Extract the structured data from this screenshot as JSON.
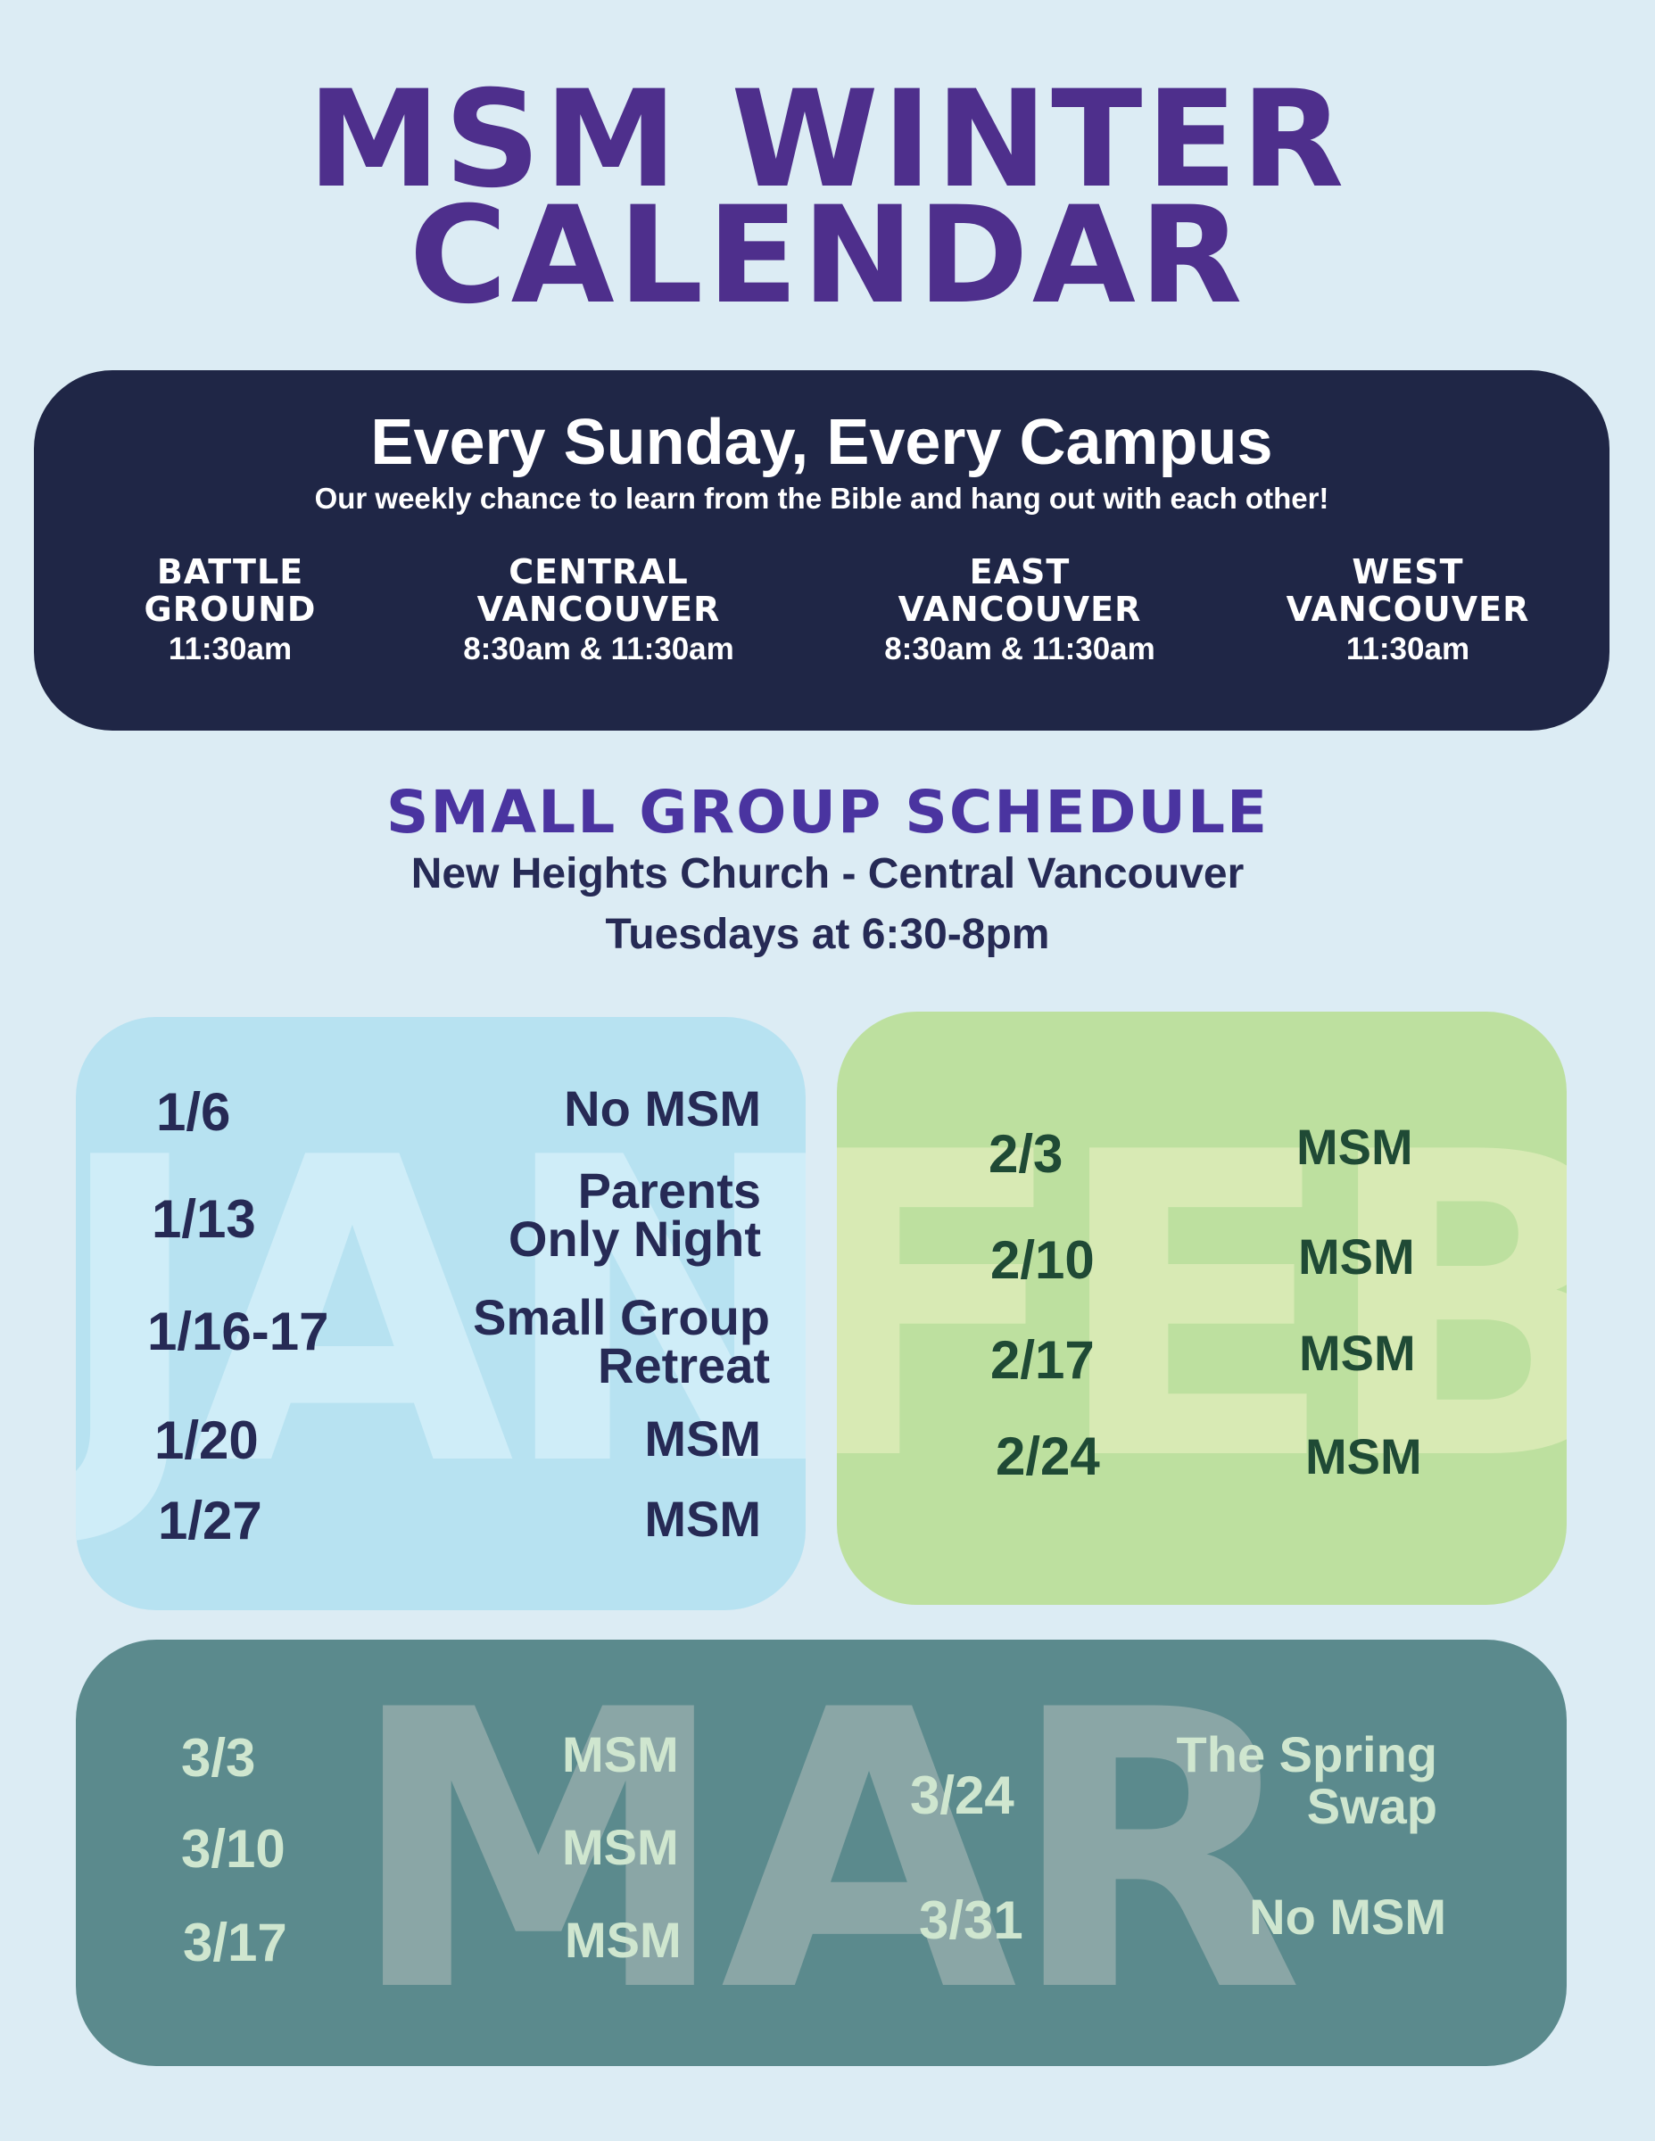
{
  "title": {
    "line1": "MSM WINTER",
    "line2": "CALENDAR"
  },
  "sunday": {
    "heading": "Every Sunday, Every Campus",
    "subheading": "Our weekly chance to learn from the Bible and hang out with each other!",
    "campuses": [
      {
        "name1": "BATTLE",
        "name2": "GROUND",
        "time": "11:30am"
      },
      {
        "name1": "CENTRAL",
        "name2": "VANCOUVER",
        "time": "8:30am & 11:30am"
      },
      {
        "name1": "EAST",
        "name2": "VANCOUVER",
        "time": "8:30am & 11:30am"
      },
      {
        "name1": "WEST",
        "name2": "VANCOUVER",
        "time": "11:30am"
      }
    ]
  },
  "small_group": {
    "heading": "SMALL GROUP SCHEDULE",
    "location": "New Heights Church - Central Vancouver",
    "time": "Tuesdays at 6:30-8pm"
  },
  "months": {
    "jan": {
      "letters": "JAN",
      "rows": [
        {
          "date": "1/6",
          "event1": "No MSM",
          "event2": ""
        },
        {
          "date": "1/13",
          "event1": "Parents",
          "event2": "Only Night"
        },
        {
          "date": "1/16-17",
          "event1": "Small Group",
          "event2": "Retreat"
        },
        {
          "date": "1/20",
          "event1": "MSM",
          "event2": ""
        },
        {
          "date": "1/27",
          "event1": "MSM",
          "event2": ""
        }
      ]
    },
    "feb": {
      "letters": "FEB",
      "rows": [
        {
          "date": "2/3",
          "event1": "MSM"
        },
        {
          "date": "2/10",
          "event1": "MSM"
        },
        {
          "date": "2/17",
          "event1": "MSM"
        },
        {
          "date": "2/24",
          "event1": "MSM"
        }
      ]
    },
    "mar": {
      "letters": "MAR",
      "rows": [
        {
          "date": "3/3",
          "event1": "MSM"
        },
        {
          "date": "3/10",
          "event1": "MSM"
        },
        {
          "date": "3/17",
          "event1": "MSM"
        },
        {
          "date": "3/24",
          "event1": "The Spring",
          "event2": "Swap"
        },
        {
          "date": "3/31",
          "event1": "No MSM"
        }
      ]
    }
  },
  "colors": {
    "background": "#dcecf4",
    "title_purple": "#4e2f8c",
    "banner_navy": "#1f2646",
    "jan_panel": "#b7e2f1",
    "feb_panel": "#bde09f",
    "mar_panel": "#5b8a8d"
  }
}
